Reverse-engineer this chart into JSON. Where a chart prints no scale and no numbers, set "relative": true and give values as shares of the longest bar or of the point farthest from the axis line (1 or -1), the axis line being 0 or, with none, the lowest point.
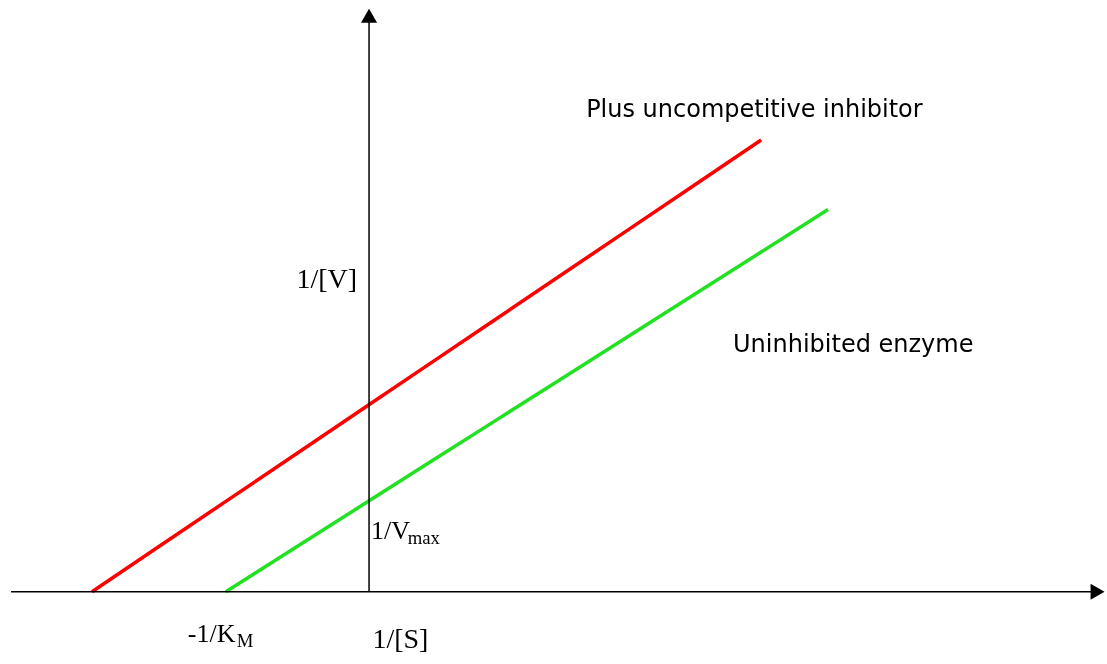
{
  "chart_data": {
    "type": "line",
    "relative": true,
    "xlabel": "1/[S]",
    "ylabel": "1/[V]",
    "categories": [
      null,
      null,
      null,
      null,
      null,
      null,
      null,
      null,
      null,
      null,
      null,
      null
    ],
    "series": [
      {
        "name": "Plus uncompetitive inhibitor",
        "color": "#ff0000",
        "values": [
          0,
          0.1,
          0.2,
          0.3,
          0.4,
          0.5,
          0.6,
          0.7,
          0.8,
          0.9,
          1.0,
          null
        ]
      },
      {
        "name": "Uninhibited enzyme",
        "color": "#22e022",
        "values": [
          null,
          null,
          0,
          0.094,
          0.188,
          0.282,
          0.376,
          0.47,
          0.564,
          0.658,
          0.752,
          0.846
        ]
      }
    ],
    "annotations": [
      "-1/K$_{M}$",
      "1/V$_{max}$"
    ]
  }
}
